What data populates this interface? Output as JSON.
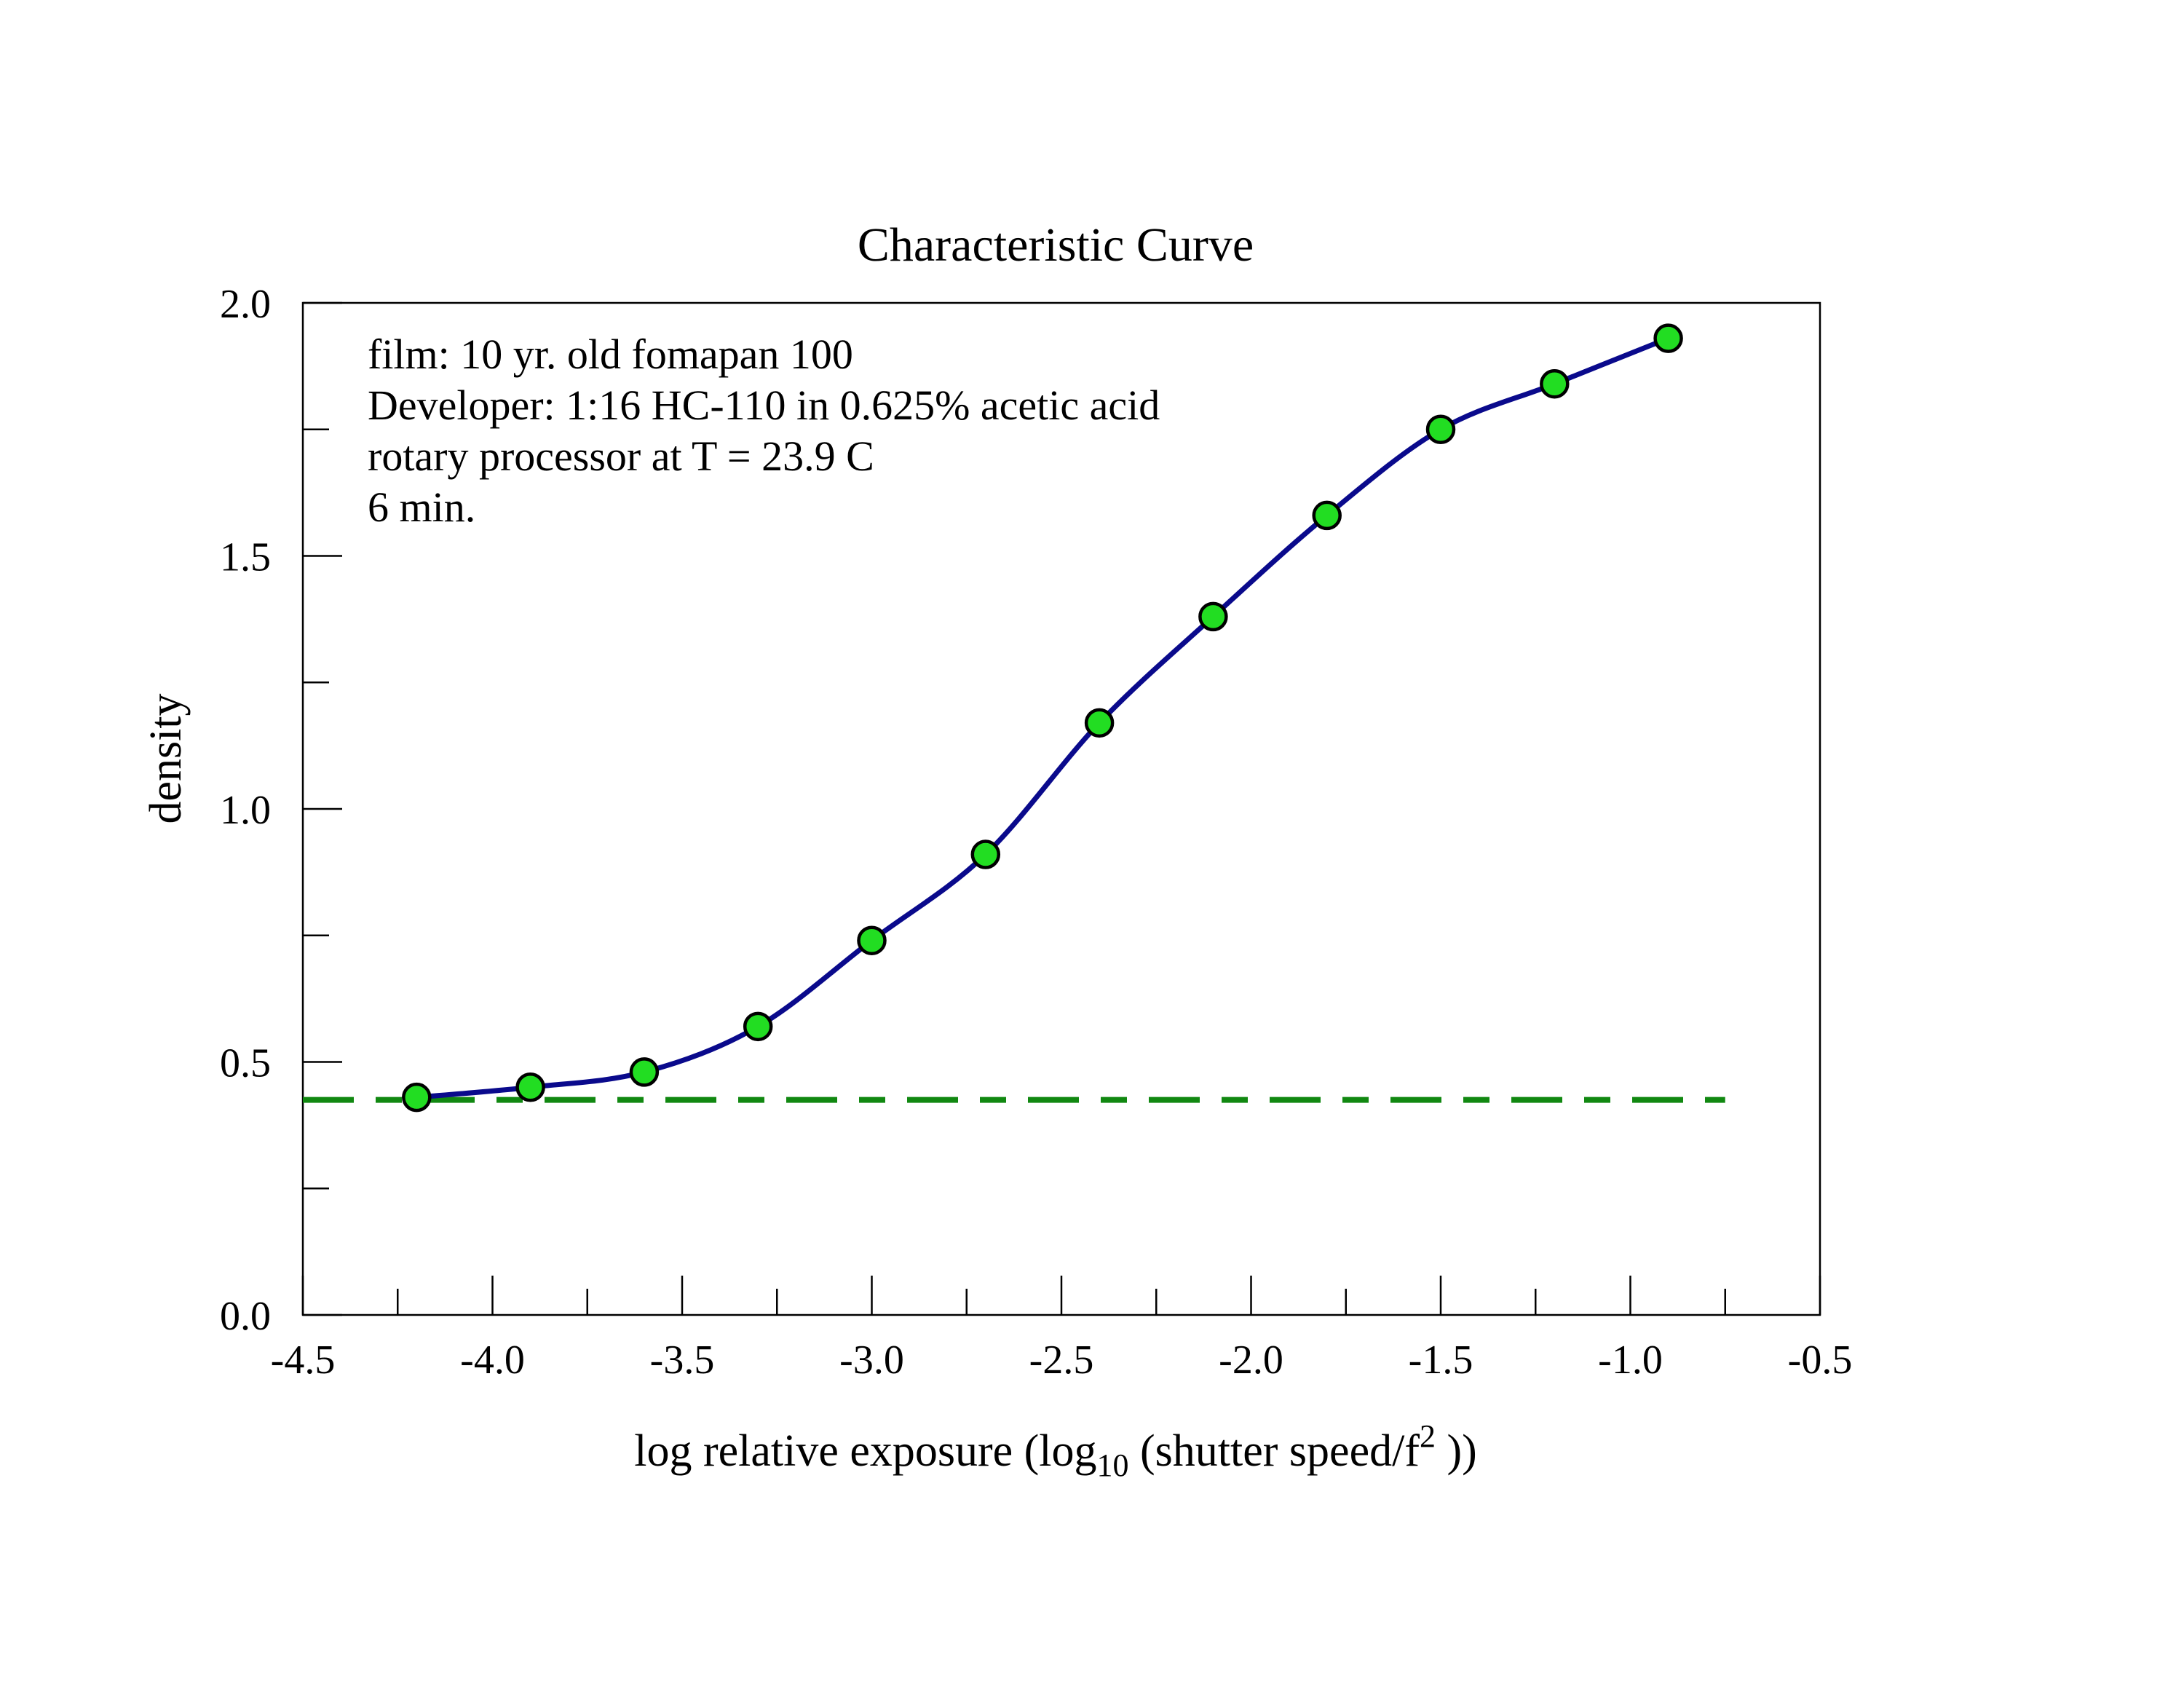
{
  "chart_data": {
    "type": "scatter",
    "title": "Characteristic Curve",
    "xlabel": {
      "pre": "log relative exposure (log",
      "sub": "10",
      "mid": " (shutter speed/f",
      "sup": "2",
      "post": " ))"
    },
    "ylabel": "density",
    "xlim": [
      -4.5,
      -0.5
    ],
    "ylim": [
      0.0,
      2.0
    ],
    "x_ticks": [
      "-4.5",
      "-4.0",
      "-3.5",
      "-3.0",
      "-2.5",
      "-2.0",
      "-1.5",
      "-1.0",
      "-0.5"
    ],
    "y_ticks": [
      "0.0",
      "0.5",
      "1.0",
      "1.5",
      "2.0"
    ],
    "grid": false,
    "annotation": [
      "film: 10 yr. old fomapan 100",
      "Developer: 1:16 HC-110 in 0.625% acetic acid",
      "rotary processor at T = 23.9 C",
      "6 min."
    ],
    "series": [
      {
        "x": [
          -4.2,
          -3.9,
          -3.6,
          -3.3,
          -3.0,
          -2.7,
          -2.4,
          -2.1,
          -1.8,
          -1.5,
          -1.2,
          -0.9
        ],
        "y": [
          0.43,
          0.45,
          0.48,
          0.57,
          0.74,
          0.91,
          1.17,
          1.38,
          1.58,
          1.75,
          1.84,
          1.93
        ],
        "marker_color": "#22dd22",
        "line_color": "#0a0a8c"
      }
    ],
    "base_level": {
      "y": 0.425,
      "x_range": [
        -4.5,
        -0.75
      ],
      "color": "#118811",
      "style": "dashed"
    }
  }
}
